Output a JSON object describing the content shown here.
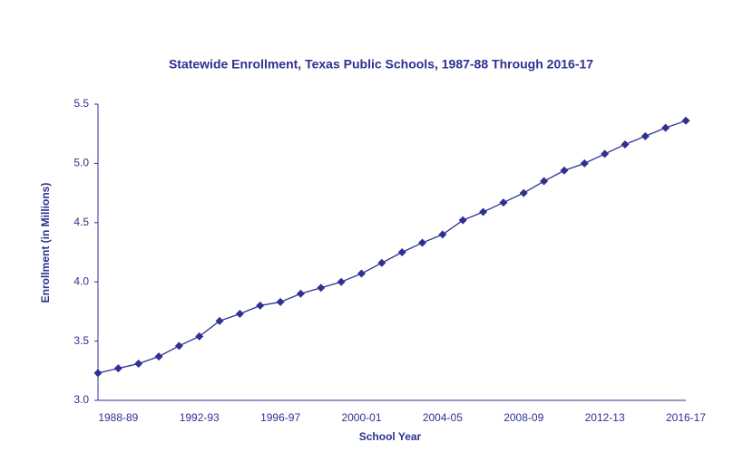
{
  "chart_data": {
    "type": "line",
    "title": "Statewide Enrollment, Texas Public Schools, 1987-88 Through 2016-17",
    "x_label": "School Year",
    "y_label": "Enrollment (in Millions)",
    "color": "#2e3192",
    "categories": [
      null,
      "1988-89",
      null,
      null,
      null,
      "1992-93",
      null,
      null,
      null,
      "1996-97",
      null,
      null,
      null,
      "2000-01",
      null,
      null,
      null,
      "2004-05",
      null,
      null,
      null,
      "2008-09",
      null,
      null,
      null,
      "2012-13",
      null,
      null,
      null,
      "2016-17"
    ],
    "values": [
      3.23,
      3.27,
      3.31,
      3.37,
      3.46,
      3.54,
      3.67,
      3.73,
      3.8,
      3.83,
      3.9,
      3.95,
      4.0,
      4.07,
      4.16,
      4.25,
      4.33,
      4.4,
      4.52,
      4.59,
      4.67,
      4.75,
      4.85,
      4.94,
      5.0,
      5.08,
      5.16,
      5.23,
      5.3,
      5.36
    ],
    "ylim": [
      3.0,
      5.5
    ],
    "yticks": [
      {
        "value": 3.0,
        "label": "3.0"
      },
      {
        "value": 3.5,
        "label": "3.5"
      },
      {
        "value": 4.0,
        "label": "4.0"
      },
      {
        "value": 4.5,
        "label": "4.5"
      },
      {
        "value": 5.0,
        "label": "5.0"
      },
      {
        "value": 5.5,
        "label": "5.5"
      }
    ],
    "grid": false
  }
}
